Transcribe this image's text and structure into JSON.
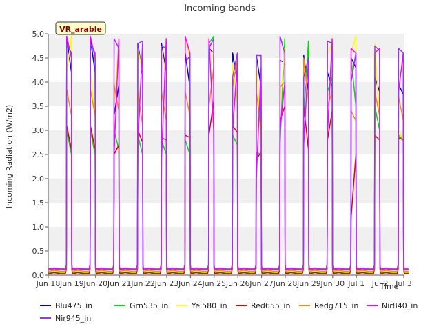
{
  "chart_data": {
    "type": "line",
    "title": "Incoming bands",
    "xlabel": "Time",
    "ylabel": "Incoming Radiation (W/m2)",
    "site_label": "VR_arable",
    "ylim": [
      0,
      5
    ],
    "xlim": [
      0,
      15
    ],
    "y_ticks": [
      "0.0",
      "0.5",
      "1.0",
      "1.5",
      "2.0",
      "2.5",
      "3.0",
      "3.5",
      "4.0",
      "4.5",
      "5.0"
    ],
    "x_ticks": [
      "Jun 18",
      "Jun 19",
      "Jun 20",
      "Jun 21",
      "Jun 22",
      "Jun 23",
      "Jun 24",
      "Jun 25",
      "Jun 26",
      "Jun 27",
      "Jun 28",
      "Jun 29",
      "Jun 30",
      "Jul 1",
      "Jul 2",
      "Jul 3"
    ],
    "grid": "horizontal bands",
    "legend_position": "bottom",
    "day_window": [
      0.78,
      0.98
    ],
    "series": [
      {
        "name": "Blu475_in",
        "color": "#0000cc",
        "night": 0.05,
        "peaks": [
          [
            4.9,
            4.2
          ],
          [
            4.9,
            4.2
          ],
          [
            3.3,
            3.95
          ],
          [
            4.8,
            4.15
          ],
          [
            4.8,
            4.2
          ],
          [
            4.6,
            3.9
          ],
          [
            4.7,
            4.6
          ],
          [
            4.6,
            4.0
          ],
          [
            4.55,
            3.9
          ],
          [
            4.45,
            4.4
          ],
          [
            4.55,
            3.8
          ],
          [
            4.2,
            3.9
          ],
          [
            4.5,
            4.3
          ],
          [
            4.1,
            3.8
          ],
          [
            3.95,
            3.75
          ]
        ]
      },
      {
        "name": "Grn535_in",
        "color": "#00dd00",
        "night": 0.04,
        "peaks": [
          [
            3.0,
            2.5
          ],
          [
            3.0,
            2.5
          ],
          [
            3.0,
            2.6
          ],
          [
            2.9,
            2.5
          ],
          [
            2.8,
            2.5
          ],
          [
            2.8,
            2.5
          ],
          [
            4.8,
            4.95
          ],
          [
            2.9,
            2.7
          ],
          [
            2.55,
            2.5
          ],
          [
            2.7,
            4.9
          ],
          [
            3.3,
            4.85
          ],
          [
            3.8,
            4.1
          ],
          [
            4.5,
            3.5
          ],
          [
            3.5,
            3.0
          ],
          [
            2.9,
            2.8
          ]
        ]
      },
      {
        "name": "Yel580_in",
        "color": "#ffff00",
        "night": 0.06,
        "peaks": [
          [
            4.2,
            4.95
          ],
          [
            4.2,
            3.3
          ],
          [
            3.5,
            4.9
          ],
          [
            4.7,
            4.2
          ],
          [
            4.7,
            4.1
          ],
          [
            4.9,
            4.5
          ],
          [
            4.1,
            4.7
          ],
          [
            4.4,
            3.5
          ],
          [
            4.5,
            2.6
          ],
          [
            3.5,
            4.7
          ],
          [
            4.3,
            3.6
          ],
          [
            4.6,
            4.8
          ],
          [
            4.6,
            4.95
          ],
          [
            4.8,
            3.2
          ],
          [
            3.0,
            2.8
          ]
        ]
      },
      {
        "name": "Red655_in",
        "color": "#dd0000",
        "night": 0.03,
        "peaks": [
          [
            3.1,
            2.6
          ],
          [
            3.1,
            2.6
          ],
          [
            2.5,
            2.7
          ],
          [
            3.0,
            2.75
          ],
          [
            2.85,
            2.8
          ],
          [
            2.9,
            2.85
          ],
          [
            2.9,
            3.6
          ],
          [
            3.1,
            2.95
          ],
          [
            2.4,
            2.55
          ],
          [
            3.2,
            3.5
          ],
          [
            3.5,
            2.6
          ],
          [
            2.8,
            3.4
          ],
          [
            1.2,
            2.5
          ],
          [
            2.9,
            2.8
          ],
          [
            2.85,
            2.8
          ]
        ]
      },
      {
        "name": "Redg715_in",
        "color": "#ff8c00",
        "night": 0.08,
        "peaks": [
          [
            3.85,
            3.3
          ],
          [
            3.85,
            3.3
          ],
          [
            3.95,
            3.4
          ],
          [
            3.8,
            3.1
          ],
          [
            3.8,
            3.2
          ],
          [
            3.8,
            3.3
          ],
          [
            3.5,
            4.3
          ],
          [
            3.9,
            4.5
          ],
          [
            3.8,
            3.0
          ],
          [
            3.9,
            4.0
          ],
          [
            4.5,
            3.6
          ],
          [
            3.5,
            3.8
          ],
          [
            3.4,
            3.2
          ],
          [
            3.8,
            3.3
          ],
          [
            3.7,
            3.2
          ]
        ]
      },
      {
        "name": "Nir840_in",
        "color": "#ff00ff",
        "night": 0.13,
        "peaks": [
          [
            4.95,
            4.5
          ],
          [
            4.95,
            4.5
          ],
          [
            2.5,
            4.9
          ],
          [
            2.7,
            4.8
          ],
          [
            2.4,
            4.9
          ],
          [
            4.95,
            4.6
          ],
          [
            4.9,
            3.0
          ],
          [
            3.0,
            4.4
          ],
          [
            2.0,
            4.3
          ],
          [
            3.0,
            4.0
          ],
          [
            2.7,
            4.5
          ],
          [
            2.9,
            4.9
          ],
          [
            4.7,
            4.6
          ],
          [
            4.6,
            4.7
          ],
          [
            3.8,
            4.6
          ]
        ]
      },
      {
        "name": "Nir945_in",
        "color": "#9933ff",
        "night": 0.11,
        "peaks": [
          [
            4.8,
            4.6
          ],
          [
            4.8,
            4.6
          ],
          [
            4.9,
            4.7
          ],
          [
            4.8,
            4.85
          ],
          [
            4.75,
            4.7
          ],
          [
            4.4,
            4.55
          ],
          [
            4.7,
            4.9
          ],
          [
            4.1,
            4.6
          ],
          [
            4.55,
            4.55
          ],
          [
            4.95,
            4.6
          ],
          [
            4.1,
            4.5
          ],
          [
            4.85,
            4.8
          ],
          [
            4.0,
            4.6
          ],
          [
            4.75,
            4.65
          ],
          [
            4.7,
            4.6
          ]
        ]
      }
    ]
  }
}
